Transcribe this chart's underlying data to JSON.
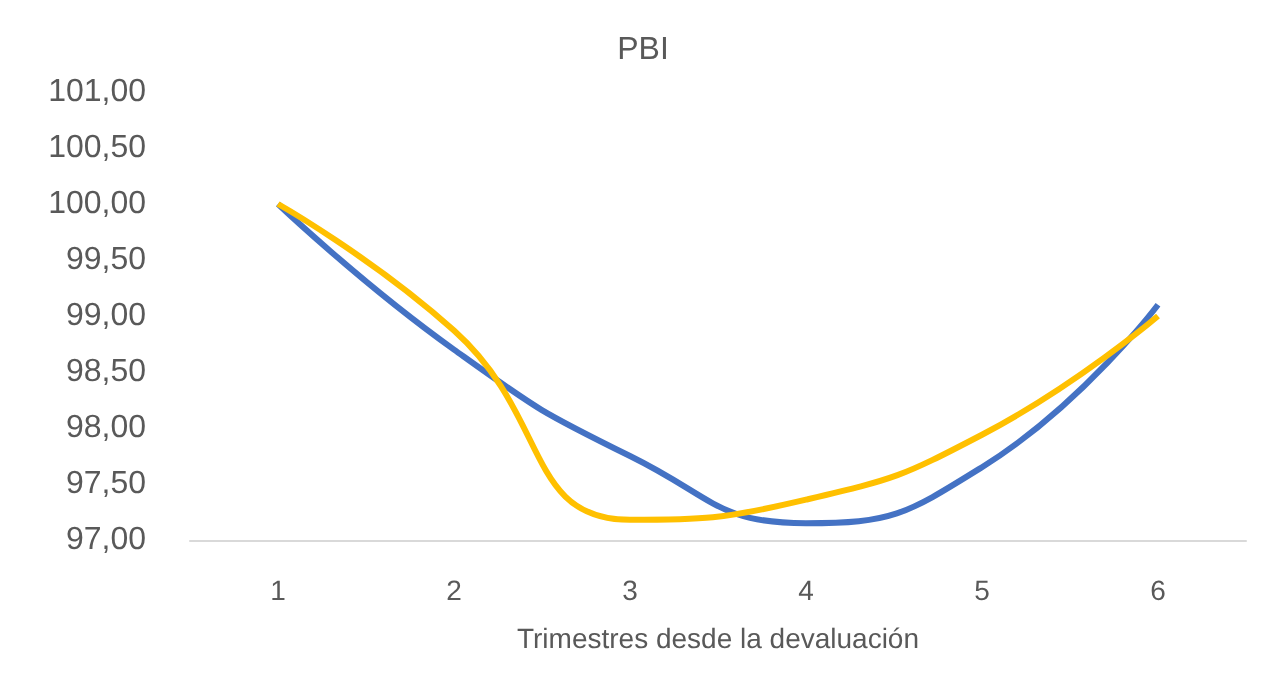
{
  "chart_data": {
    "type": "line",
    "title": "PBI",
    "xlabel": "Trimestres desde la devaluación",
    "categories": [
      "1",
      "2",
      "3",
      "4",
      "5",
      "6"
    ],
    "series": [
      {
        "color": "#4472c4",
        "values": [
          100,
          98.7,
          97.75,
          97.15,
          97.65,
          99.1
        ]
      },
      {
        "color": "#ffc000",
        "values": [
          100,
          98.87,
          97.18,
          97.36,
          97.94,
          99
        ]
      }
    ],
    "ylim": [
      97,
      101
    ],
    "yticks": [
      {
        "value": 97,
        "label": "97,00"
      },
      {
        "value": 97.5,
        "label": "97,50"
      },
      {
        "value": 98,
        "label": "98,00"
      },
      {
        "value": 98.5,
        "label": "98,50"
      },
      {
        "value": 99,
        "label": "99,00"
      },
      {
        "value": 99.5,
        "label": "99,50"
      },
      {
        "value": 100,
        "label": "100,00"
      },
      {
        "value": 100.5,
        "label": "100,50"
      },
      {
        "value": 101,
        "label": "101,00"
      }
    ],
    "grid": false,
    "marker": "none",
    "line_style": "solid"
  }
}
